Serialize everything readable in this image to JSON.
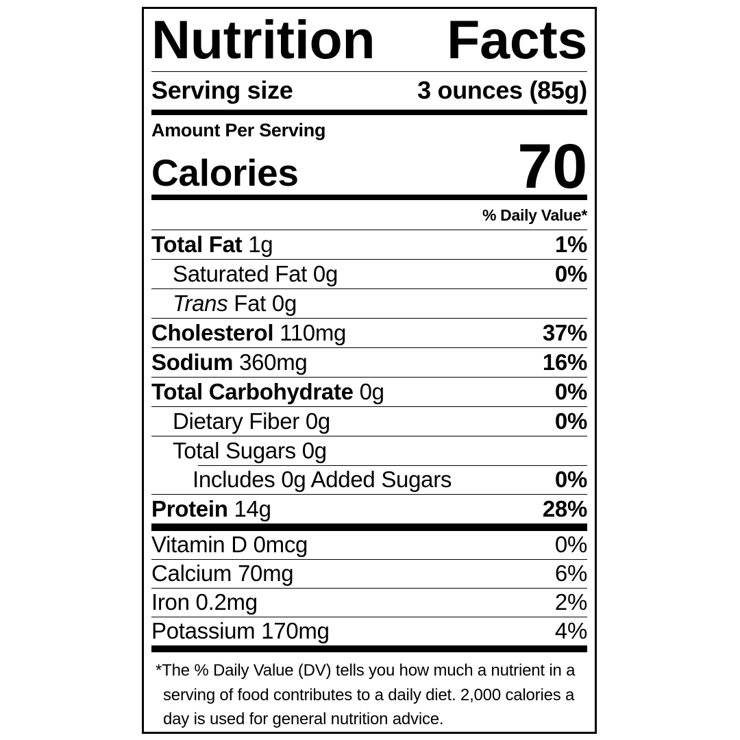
{
  "label": {
    "title": "Nutrition Facts",
    "serving": {
      "name": "Serving size",
      "value": "3 ounces (85g)"
    },
    "amount_per_serving": "Amount Per Serving",
    "calories": {
      "name": "Calories",
      "value": "70"
    },
    "daily_value_header": "% Daily Value*",
    "nutrients": [
      {
        "name": "Total Fat",
        "amount": "1g",
        "dv": "1%",
        "indent": 0,
        "name_style": "bold",
        "dv_bold": true
      },
      {
        "name": "Saturated Fat",
        "amount": "0g",
        "dv": "0%",
        "indent": 1,
        "name_style": "regular",
        "dv_bold": true
      },
      {
        "name": "Trans",
        "amount": "Fat 0g",
        "dv": "",
        "indent": 1,
        "name_style": "italic",
        "dv_bold": false
      },
      {
        "name": "Cholesterol",
        "amount": "110mg",
        "dv": "37%",
        "indent": 0,
        "name_style": "bold",
        "dv_bold": true
      },
      {
        "name": "Sodium",
        "amount": "360mg",
        "dv": "16%",
        "indent": 0,
        "name_style": "bold",
        "dv_bold": true
      },
      {
        "name": "Total Carbohydrate",
        "amount": "0g",
        "dv": "0%",
        "indent": 0,
        "name_style": "bold",
        "dv_bold": true
      },
      {
        "name": "Dietary Fiber",
        "amount": "0g",
        "dv": "0%",
        "indent": 1,
        "name_style": "regular",
        "dv_bold": true
      },
      {
        "name": "Total Sugars",
        "amount": "0g",
        "dv": "",
        "indent": 1,
        "name_style": "regular",
        "dv_bold": false
      },
      {
        "name": "Includes 0g Added Sugars",
        "amount": "",
        "dv": "0%",
        "indent": 2,
        "name_style": "regular",
        "dv_bold": true,
        "divider": "indent"
      },
      {
        "name": "Protein",
        "amount": "14g",
        "dv": "28%",
        "indent": 0,
        "name_style": "bold",
        "dv_bold": true
      }
    ],
    "vitamins": [
      {
        "name": "Vitamin D",
        "amount": "0mcg",
        "dv": "0%",
        "indent": 0,
        "name_style": "regular",
        "dv_bold": false
      },
      {
        "name": "Calcium",
        "amount": "70mg",
        "dv": "6%",
        "indent": 0,
        "name_style": "regular",
        "dv_bold": false
      },
      {
        "name": "Iron",
        "amount": "0.2mg",
        "dv": "2%",
        "indent": 0,
        "name_style": "regular",
        "dv_bold": false
      },
      {
        "name": "Potassium",
        "amount": "170mg",
        "dv": "4%",
        "indent": 0,
        "name_style": "regular",
        "dv_bold": false
      }
    ],
    "footnote": "*The % Daily Value (DV) tells you how much a nutrient in a serving of food contributes to a daily diet. 2,000 calories a day is used for general nutrition advice.",
    "colors": {
      "ink": "#000000",
      "paper": "#ffffff"
    }
  }
}
